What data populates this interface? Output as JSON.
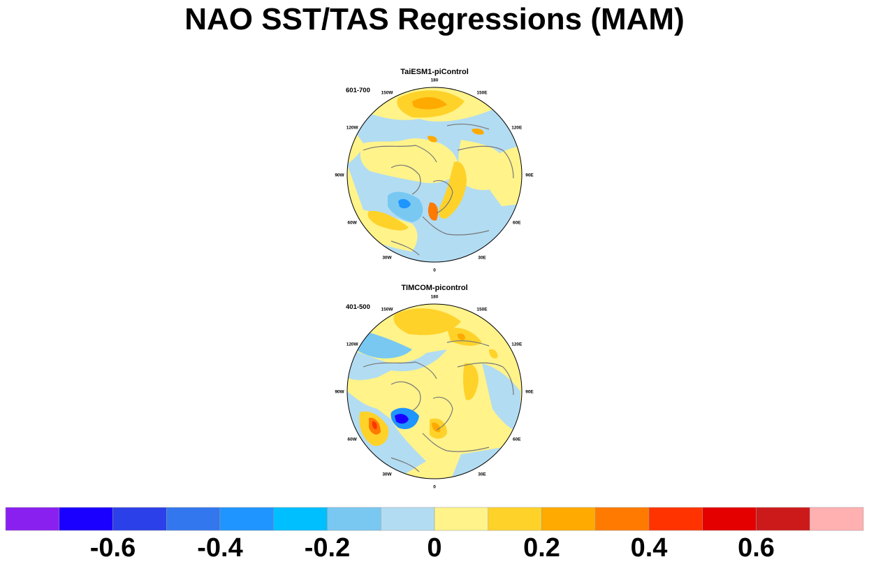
{
  "title": "NAO SST/TAS Regressions (MAM)",
  "panels": [
    {
      "name": "TaiESM1-piControl",
      "period": "601-700",
      "lon_labels": [
        "180",
        "150E",
        "120E",
        "90E",
        "60E",
        "30E",
        "0",
        "30W",
        "60W",
        "90W",
        "120W",
        "150W"
      ]
    },
    {
      "name": "TIMCOM-picontrol",
      "period": "401-500",
      "lon_labels": [
        "180",
        "150E",
        "120E",
        "90E",
        "60E",
        "30E",
        "0",
        "30W",
        "60W",
        "90W",
        "120W",
        "150W"
      ]
    }
  ],
  "colorbar": {
    "tick_labels": [
      "-0.6",
      "-0.4",
      "-0.2",
      "0",
      "0.2",
      "0.4",
      "0.6"
    ],
    "tick_values": [
      -0.6,
      -0.4,
      -0.2,
      0,
      0.2,
      0.4,
      0.6
    ],
    "bins": [
      -0.7,
      -0.6,
      -0.5,
      -0.4,
      -0.3,
      -0.2,
      -0.1,
      0,
      0.1,
      0.2,
      0.3,
      0.4,
      0.5,
      0.6,
      0.7
    ],
    "colors": [
      "#8a20f0",
      "#1a00ff",
      "#2b40e8",
      "#3377ee",
      "#1f95ff",
      "#00bfff",
      "#78c8f2",
      "#b2dcf2",
      "#fff38a",
      "#ffd22a",
      "#ffaa00",
      "#ff7a00",
      "#ff3300",
      "#e50000",
      "#cc1a1a",
      "#ffb0b0"
    ]
  }
}
